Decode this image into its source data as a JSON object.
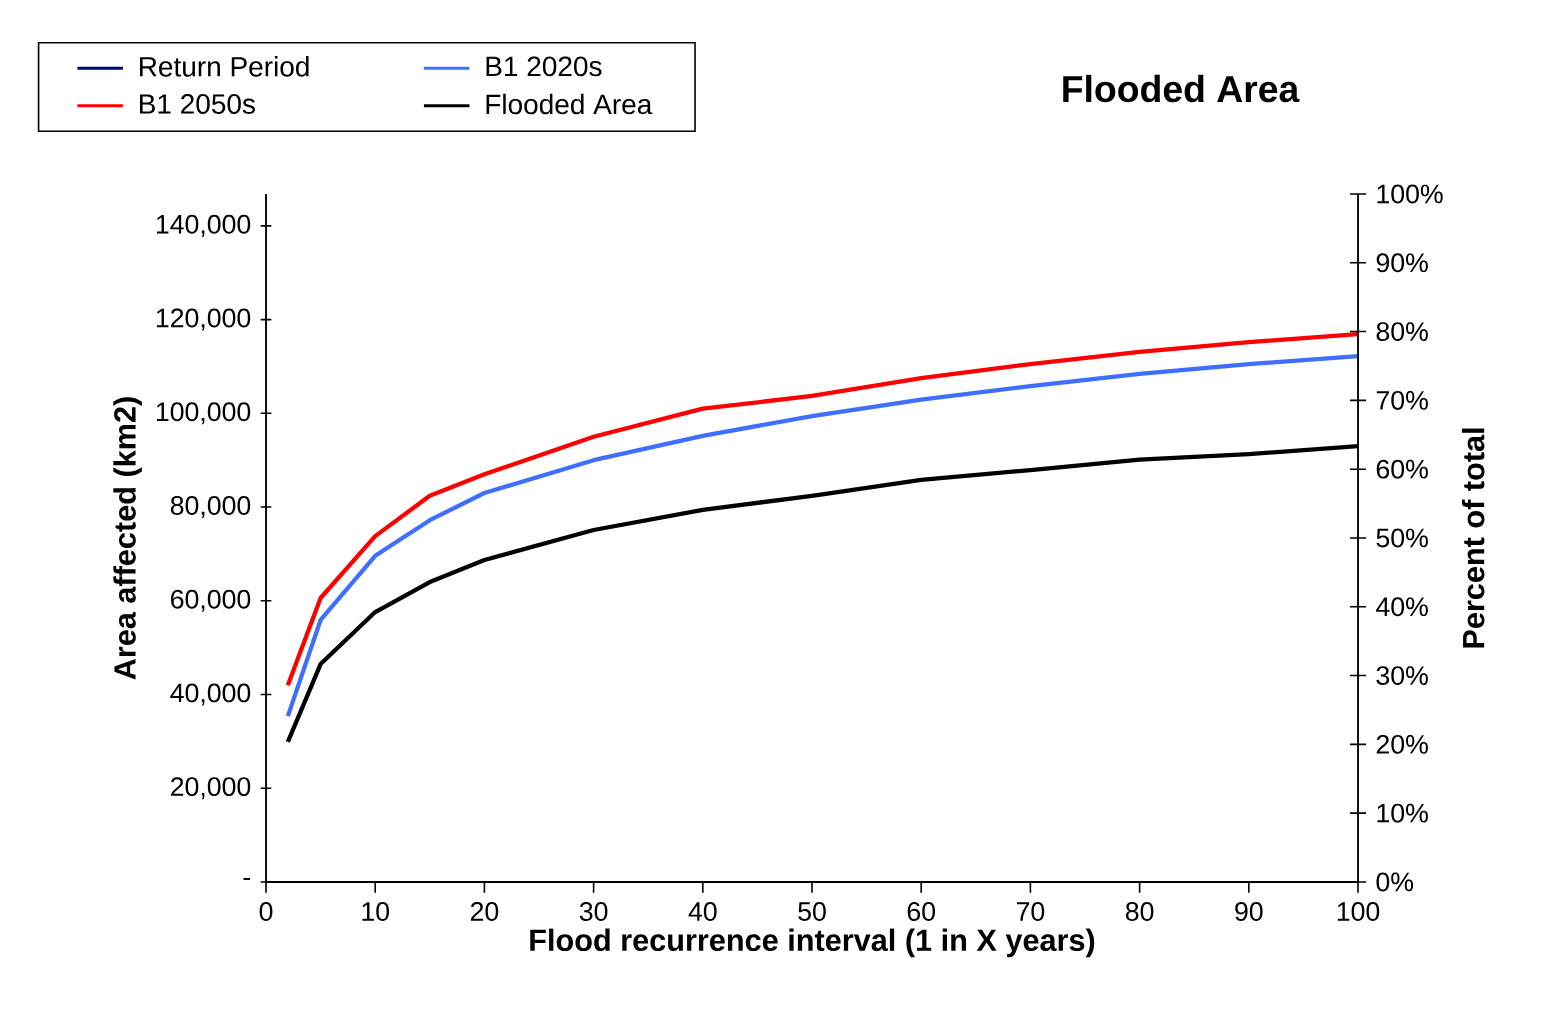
{
  "chart_data": {
    "type": "line",
    "title": "Flooded Area",
    "xlabel": "Flood recurrence interval (1 in X years)",
    "ylabel": "Area affected (km2)",
    "y2label": "Percent of total",
    "x": [
      2,
      5,
      10,
      15,
      20,
      30,
      40,
      50,
      60,
      70,
      80,
      90,
      100
    ],
    "series": [
      {
        "name": "Return Period",
        "color": "#000080",
        "values": [
          null,
          null,
          null,
          null,
          null,
          null,
          null,
          null,
          null,
          null,
          null,
          null,
          null
        ]
      },
      {
        "name": "B1 2020s",
        "color": "#3f6fff",
        "values": [
          35400,
          55900,
          69600,
          77200,
          83000,
          90000,
          95200,
          99400,
          102900,
          105800,
          108400,
          110500,
          112200
        ]
      },
      {
        "name": "B1 2050s",
        "color": "#ff0000",
        "values": [
          42000,
          60600,
          73800,
          82400,
          87000,
          95000,
          101000,
          103700,
          107500,
          110500,
          113100,
          115200,
          116900
        ]
      },
      {
        "name": "Flooded Area",
        "color": "#000000",
        "values": [
          29900,
          46500,
          57600,
          64000,
          68700,
          75100,
          79400,
          82400,
          85800,
          87900,
          90100,
          91300,
          93000
        ]
      }
    ],
    "xlim": [
      0,
      100
    ],
    "xticks": [
      0,
      10,
      20,
      30,
      40,
      50,
      60,
      70,
      80,
      90,
      100
    ],
    "ylim": [
      0,
      146800
    ],
    "yticks": [
      {
        "value": 0,
        "label": "-"
      },
      {
        "value": 20000,
        "label": "20,000"
      },
      {
        "value": 40000,
        "label": "40,000"
      },
      {
        "value": 60000,
        "label": "60,000"
      },
      {
        "value": 80000,
        "label": "80,000"
      },
      {
        "value": 100000,
        "label": "100,000"
      },
      {
        "value": 120000,
        "label": "120,000"
      },
      {
        "value": 140000,
        "label": "140,000"
      }
    ],
    "y2lim": [
      0,
      100
    ],
    "y2ticks": [
      {
        "value": 0,
        "label": "0%"
      },
      {
        "value": 10,
        "label": "10%"
      },
      {
        "value": 20,
        "label": "20%"
      },
      {
        "value": 30,
        "label": "30%"
      },
      {
        "value": 40,
        "label": "40%"
      },
      {
        "value": 50,
        "label": "50%"
      },
      {
        "value": 60,
        "label": "60%"
      },
      {
        "value": 70,
        "label": "70%"
      },
      {
        "value": 80,
        "label": "80%"
      },
      {
        "value": 90,
        "label": "90%"
      },
      {
        "value": 100,
        "label": "100%"
      }
    ],
    "legend": "top left"
  }
}
